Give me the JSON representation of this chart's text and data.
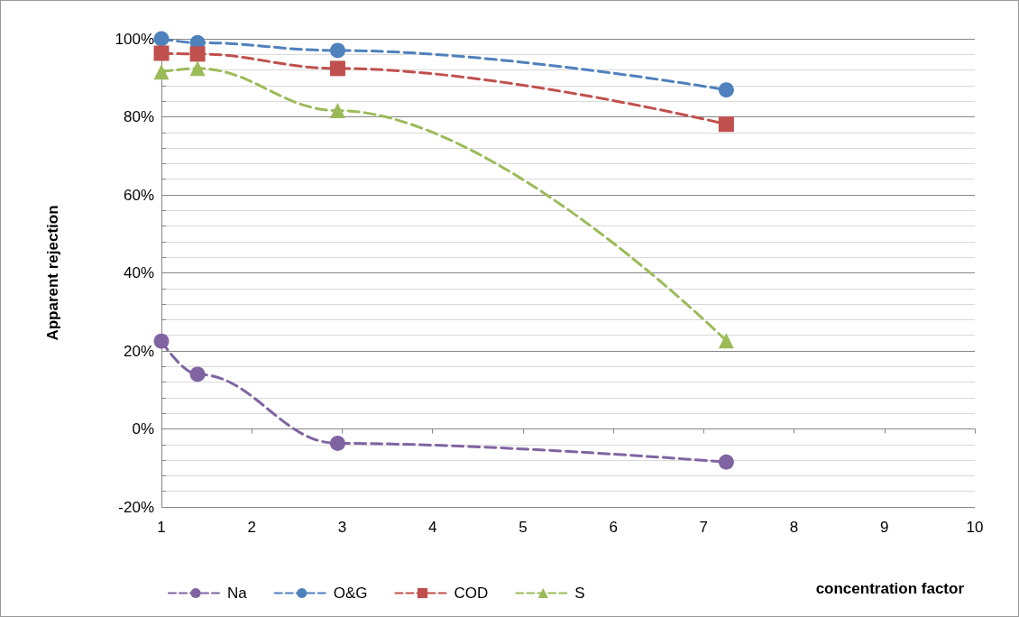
{
  "chart_data": {
    "type": "line",
    "xlabel": "concentration factor",
    "ylabel": "Apparent rejection",
    "xlim": [
      1,
      10
    ],
    "xticks": [
      1,
      2,
      3,
      4,
      5,
      6,
      7,
      8,
      9,
      10
    ],
    "ylim": [
      -20,
      100
    ],
    "yticks": [
      {
        "value": -20,
        "label": "-20%"
      },
      {
        "value": -16,
        "label": null
      },
      {
        "value": -12,
        "label": null
      },
      {
        "value": -8,
        "label": null
      },
      {
        "value": -4,
        "label": null
      },
      {
        "value": 0,
        "label": "0%"
      },
      {
        "value": 4,
        "label": null
      },
      {
        "value": 8,
        "label": null
      },
      {
        "value": 12,
        "label": null
      },
      {
        "value": 16,
        "label": null
      },
      {
        "value": 20,
        "label": "20%"
      },
      {
        "value": 24,
        "label": null
      },
      {
        "value": 28,
        "label": null
      },
      {
        "value": 32,
        "label": null
      },
      {
        "value": 36,
        "label": null
      },
      {
        "value": 40,
        "label": "40%"
      },
      {
        "value": 44,
        "label": null
      },
      {
        "value": 48,
        "label": null
      },
      {
        "value": 52,
        "label": null
      },
      {
        "value": 56,
        "label": null
      },
      {
        "value": 60,
        "label": "60%"
      },
      {
        "value": 64,
        "label": null
      },
      {
        "value": 68,
        "label": null
      },
      {
        "value": 72,
        "label": null
      },
      {
        "value": 76,
        "label": null
      },
      {
        "value": 80,
        "label": "80%"
      },
      {
        "value": 84,
        "label": null
      },
      {
        "value": 88,
        "label": null
      },
      {
        "value": 92,
        "label": null
      },
      {
        "value": 96,
        "label": null
      },
      {
        "value": 100,
        "label": "100%"
      }
    ],
    "x": [
      1,
      1.4,
      2.95,
      7.25
    ],
    "series": [
      {
        "name": "Na",
        "color": "#8064a2",
        "marker": "circle",
        "values": [
          22.5,
          14,
          -3.7,
          -8.5
        ]
      },
      {
        "name": "O&G",
        "color": "#4f81bd",
        "marker": "circle",
        "values": [
          100,
          99,
          97,
          86.9
        ]
      },
      {
        "name": "COD",
        "color": "#c0504d",
        "marker": "square",
        "values": [
          96.3,
          96.1,
          92.4,
          78.1
        ]
      },
      {
        "name": "S",
        "color": "#9bbb59",
        "marker": "triangle",
        "values": [
          91.5,
          92.4,
          81.6,
          22.6
        ]
      }
    ],
    "line_style": "dashed",
    "grid": "y",
    "legend": "bottom"
  }
}
